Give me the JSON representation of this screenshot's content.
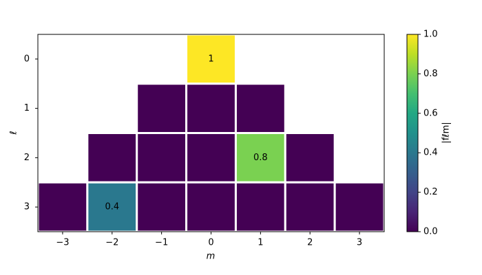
{
  "chart_data": {
    "type": "heatmap",
    "x": [
      -3,
      -2,
      -1,
      0,
      1,
      2,
      3
    ],
    "y": [
      0,
      1,
      2,
      3
    ],
    "values": [
      [
        null,
        null,
        null,
        1,
        null,
        null,
        null
      ],
      [
        null,
        null,
        0,
        0,
        0,
        null,
        null
      ],
      [
        null,
        0,
        0,
        0,
        0.8,
        0,
        null
      ],
      [
        0,
        0.4,
        0,
        0,
        0,
        0,
        0
      ]
    ],
    "xlabel": "m",
    "ylabel": "ℓ",
    "xlim": [
      -3.5,
      3.5
    ],
    "ylim": [
      3.5,
      -0.5
    ],
    "xticks": [
      {
        "value": -3,
        "label": "−3"
      },
      {
        "value": -2,
        "label": "−2"
      },
      {
        "value": -1,
        "label": "−1"
      },
      0,
      1,
      2,
      3
    ],
    "yticks": [
      0,
      1,
      2,
      3
    ],
    "colormap": "viridis",
    "clim": [
      0,
      1
    ],
    "cticks": [
      {
        "value": 0,
        "label": "0.0"
      },
      {
        "value": 0.2,
        "label": "0.2"
      },
      {
        "value": 0.4,
        "label": "0.4"
      },
      {
        "value": 0.6,
        "label": "0.6"
      },
      {
        "value": 0.8,
        "label": "0.8"
      },
      {
        "value": 1,
        "label": "1.0"
      }
    ],
    "colorbar_label": "|fℓm|"
  }
}
